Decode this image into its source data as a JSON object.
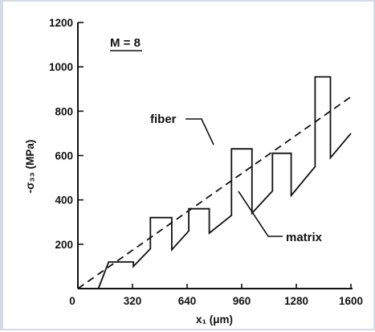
{
  "chart_data": {
    "type": "line",
    "xlabel": "x₁ (μm)",
    "ylabel": "-σ₃₃ (MPa)",
    "xlim": [
      0,
      1600
    ],
    "ylim": [
      0,
      1200
    ],
    "xticks": [
      "0",
      "320",
      "640",
      "960",
      "1280",
      "1600"
    ],
    "yticks": [
      "0",
      "200",
      "400",
      "600",
      "800",
      "1000",
      "1200"
    ],
    "x_tick_values": [
      0,
      320,
      640,
      960,
      1280,
      1600
    ],
    "y_tick_values": [
      0,
      200,
      400,
      600,
      800,
      1000,
      1200
    ],
    "grid": false,
    "legend": "none",
    "annotation": "M = 8",
    "series": [
      {
        "name": "fiber",
        "style": "solid",
        "x": [
          120,
          180,
          180,
          325,
          325,
          325,
          425,
          425,
          550,
          550,
          550,
          650,
          650,
          770,
          770,
          770,
          900,
          900,
          1020,
          1020,
          1020,
          1140,
          1140,
          1250,
          1250,
          1250,
          1390,
          1390,
          1480,
          1480,
          1480,
          1600
        ],
        "y": [
          0,
          120,
          120,
          120,
          100,
          100,
          180,
          320,
          320,
          175,
          175,
          260,
          360,
          360,
          250,
          250,
          330,
          630,
          630,
          340,
          340,
          440,
          610,
          610,
          420,
          420,
          550,
          955,
          955,
          590,
          590,
          700
        ]
      },
      {
        "name": "matrix",
        "style": "dashed",
        "x": [
          0,
          1600
        ],
        "y": [
          0,
          865
        ]
      }
    ]
  }
}
